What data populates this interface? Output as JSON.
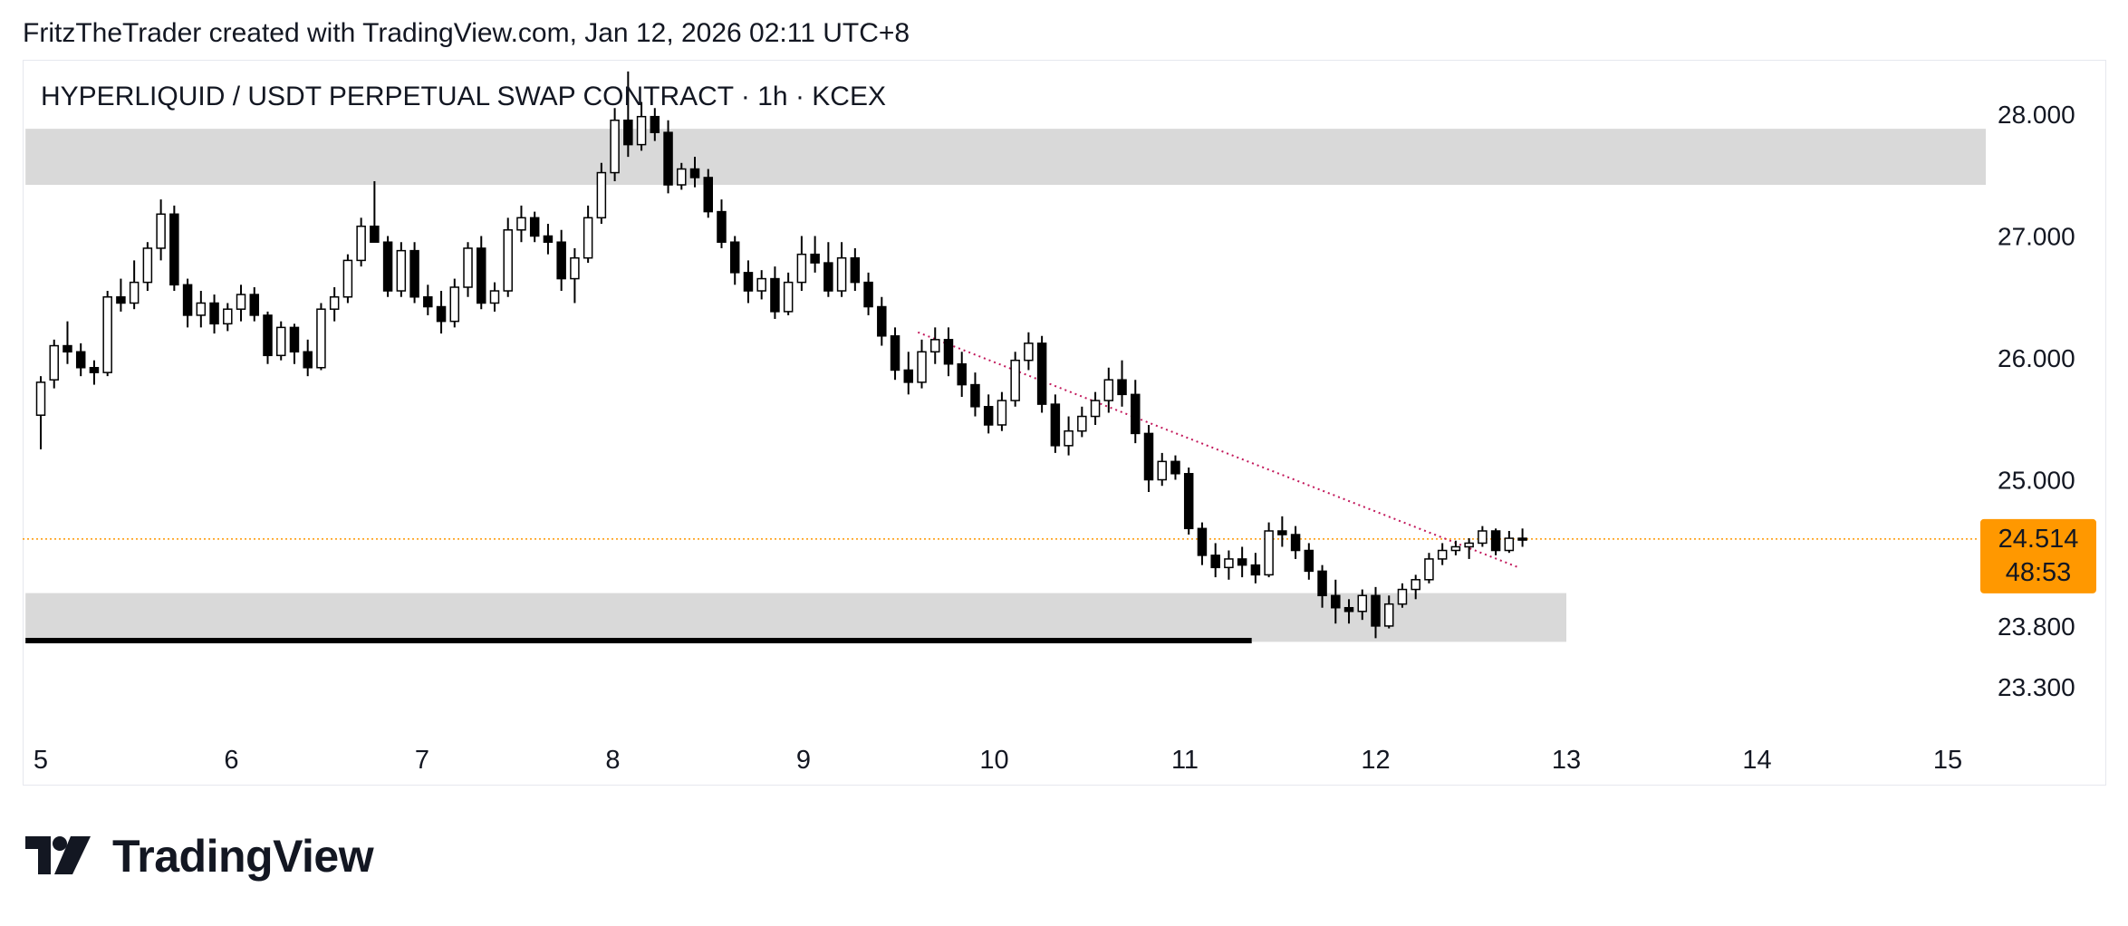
{
  "header": {
    "text": "FritzTheTrader created with TradingView.com, Jan 12, 2026 02:11 UTC+8"
  },
  "symbol": {
    "title": "HYPERLIQUID / USDT PERPETUAL SWAP CONTRACT  ·  1h  ·  KCEX"
  },
  "logo": {
    "text": "TradingView",
    "icon": "tradingview-logo-icon"
  },
  "colors": {
    "up": "#ffffff",
    "down": "#000000",
    "wick": "#000000",
    "zone": "#d9d9d9",
    "trendline": "#c2185b",
    "last_price_line": "#ff9800",
    "last_price_badge": "#ff9800"
  },
  "chart_data": {
    "type": "candlestick",
    "title": "HYPERLIQUID / USDT PERPETUAL SWAP CONTRACT",
    "interval": "1h",
    "exchange": "KCEX",
    "x_axis": {
      "ticks": [
        "5",
        "6",
        "7",
        "8",
        "9",
        "10",
        "11",
        "12",
        "13",
        "14",
        "15"
      ],
      "range_days": [
        4.92,
        15.2
      ]
    },
    "y_axis": {
      "ticks": [
        "28.000",
        "27.000",
        "26.000",
        "25.000",
        "23.800",
        "23.300"
      ],
      "range": [
        23.2,
        28.3
      ]
    },
    "last_price": {
      "value": "24.514",
      "countdown": "48:53"
    },
    "zones": [
      {
        "name": "resistance-zone",
        "from_day": 4.92,
        "to_day": 15.2,
        "low": 27.42,
        "high": 27.88
      },
      {
        "name": "support-zone",
        "from_day": 4.92,
        "to_day": 13.0,
        "low": 23.67,
        "high": 24.07
      }
    ],
    "horizontal_lines": [
      {
        "name": "support-line",
        "from_day": 4.92,
        "to_day": 11.35,
        "price": 23.68
      }
    ],
    "trendline": {
      "start": [
        9.6,
        26.21
      ],
      "end": [
        12.75,
        24.28
      ]
    },
    "ohlc": [
      [
        5.0,
        25.53,
        25.85,
        25.25,
        25.8
      ],
      [
        5.07,
        25.82,
        26.15,
        25.75,
        26.1
      ],
      [
        5.14,
        26.1,
        26.3,
        25.95,
        26.05
      ],
      [
        5.21,
        26.05,
        26.12,
        25.85,
        25.92
      ],
      [
        5.28,
        25.92,
        25.98,
        25.78,
        25.88
      ],
      [
        5.35,
        25.88,
        26.55,
        25.85,
        26.5
      ],
      [
        5.42,
        26.5,
        26.65,
        26.38,
        26.45
      ],
      [
        5.49,
        26.45,
        26.8,
        26.4,
        26.62
      ],
      [
        5.56,
        26.62,
        26.95,
        26.55,
        26.9
      ],
      [
        5.63,
        26.9,
        27.3,
        26.8,
        27.18
      ],
      [
        5.7,
        27.18,
        27.25,
        26.55,
        26.6
      ],
      [
        5.77,
        26.6,
        26.65,
        26.25,
        26.35
      ],
      [
        5.84,
        26.35,
        26.55,
        26.25,
        26.45
      ],
      [
        5.91,
        26.45,
        26.52,
        26.2,
        26.28
      ],
      [
        5.98,
        26.28,
        26.45,
        26.22,
        26.4
      ],
      [
        6.05,
        26.4,
        26.6,
        26.3,
        26.52
      ],
      [
        6.12,
        26.52,
        26.58,
        26.3,
        26.35
      ],
      [
        6.19,
        26.35,
        26.38,
        25.95,
        26.02
      ],
      [
        6.26,
        26.02,
        26.3,
        25.98,
        26.25
      ],
      [
        6.33,
        26.25,
        26.28,
        25.95,
        26.05
      ],
      [
        6.4,
        26.05,
        26.15,
        25.85,
        25.92
      ],
      [
        6.47,
        25.92,
        26.45,
        25.9,
        26.4
      ],
      [
        6.54,
        26.4,
        26.58,
        26.3,
        26.5
      ],
      [
        6.61,
        26.5,
        26.85,
        26.45,
        26.8
      ],
      [
        6.68,
        26.8,
        27.15,
        26.75,
        27.08
      ],
      [
        6.75,
        27.08,
        27.45,
        27.0,
        26.95
      ],
      [
        6.82,
        26.95,
        27.0,
        26.5,
        26.55
      ],
      [
        6.89,
        26.55,
        26.95,
        26.5,
        26.88
      ],
      [
        6.96,
        26.88,
        26.95,
        26.45,
        26.5
      ],
      [
        7.03,
        26.5,
        26.6,
        26.35,
        26.42
      ],
      [
        7.1,
        26.42,
        26.55,
        26.2,
        26.3
      ],
      [
        7.17,
        26.3,
        26.65,
        26.25,
        26.58
      ],
      [
        7.24,
        26.58,
        26.95,
        26.5,
        26.9
      ],
      [
        7.31,
        26.9,
        27.0,
        26.4,
        26.45
      ],
      [
        7.38,
        26.45,
        26.62,
        26.38,
        26.55
      ],
      [
        7.45,
        26.55,
        27.15,
        26.5,
        27.05
      ],
      [
        7.52,
        27.05,
        27.25,
        26.95,
        27.15
      ],
      [
        7.59,
        27.15,
        27.2,
        26.95,
        27.0
      ],
      [
        7.66,
        27.0,
        27.1,
        26.85,
        26.95
      ],
      [
        7.73,
        26.95,
        27.05,
        26.55,
        26.65
      ],
      [
        7.8,
        26.65,
        26.9,
        26.45,
        26.82
      ],
      [
        7.87,
        26.82,
        27.25,
        26.78,
        27.15
      ],
      [
        7.94,
        27.15,
        27.6,
        27.1,
        27.52
      ],
      [
        8.01,
        27.52,
        28.05,
        27.45,
        27.95
      ],
      [
        8.08,
        27.95,
        28.35,
        27.65,
        27.75
      ],
      [
        8.15,
        27.75,
        28.1,
        27.7,
        27.98
      ],
      [
        8.22,
        27.98,
        28.05,
        27.78,
        27.85
      ],
      [
        8.29,
        27.85,
        27.95,
        27.35,
        27.42
      ],
      [
        8.36,
        27.42,
        27.6,
        27.38,
        27.55
      ],
      [
        8.43,
        27.55,
        27.65,
        27.4,
        27.48
      ],
      [
        8.5,
        27.48,
        27.55,
        27.15,
        27.2
      ],
      [
        8.57,
        27.2,
        27.3,
        26.9,
        26.95
      ],
      [
        8.64,
        26.95,
        27.0,
        26.6,
        26.7
      ],
      [
        8.71,
        26.7,
        26.8,
        26.45,
        26.55
      ],
      [
        8.78,
        26.55,
        26.72,
        26.48,
        26.65
      ],
      [
        8.85,
        26.65,
        26.75,
        26.32,
        26.38
      ],
      [
        8.92,
        26.38,
        26.7,
        26.35,
        26.62
      ],
      [
        8.99,
        26.62,
        27.0,
        26.55,
        26.85
      ],
      [
        9.06,
        26.85,
        27.0,
        26.7,
        26.78
      ],
      [
        9.13,
        26.78,
        26.95,
        26.5,
        26.55
      ],
      [
        9.2,
        26.55,
        26.95,
        26.5,
        26.82
      ],
      [
        9.27,
        26.82,
        26.9,
        26.55,
        26.62
      ],
      [
        9.34,
        26.62,
        26.7,
        26.35,
        26.42
      ],
      [
        9.41,
        26.42,
        26.5,
        26.1,
        26.18
      ],
      [
        9.48,
        26.18,
        26.25,
        25.82,
        25.9
      ],
      [
        9.55,
        25.9,
        26.05,
        25.7,
        25.8
      ],
      [
        9.62,
        25.8,
        26.15,
        25.75,
        26.05
      ],
      [
        9.69,
        26.05,
        26.25,
        25.95,
        26.15
      ],
      [
        9.76,
        26.15,
        26.25,
        25.85,
        25.95
      ],
      [
        9.83,
        25.95,
        26.05,
        25.68,
        25.78
      ],
      [
        9.9,
        25.78,
        25.88,
        25.52,
        25.6
      ],
      [
        9.97,
        25.6,
        25.7,
        25.38,
        25.45
      ],
      [
        10.04,
        25.45,
        25.72,
        25.4,
        25.65
      ],
      [
        10.11,
        25.65,
        26.05,
        25.6,
        25.98
      ],
      [
        10.18,
        25.98,
        26.21,
        25.9,
        26.12
      ],
      [
        10.25,
        26.12,
        26.18,
        25.55,
        25.62
      ],
      [
        10.32,
        25.62,
        25.7,
        25.22,
        25.28
      ],
      [
        10.39,
        25.28,
        25.52,
        25.2,
        25.4
      ],
      [
        10.46,
        25.4,
        25.6,
        25.35,
        25.52
      ],
      [
        10.53,
        25.52,
        25.72,
        25.45,
        25.65
      ],
      [
        10.6,
        25.65,
        25.92,
        25.55,
        25.82
      ],
      [
        10.67,
        25.82,
        25.98,
        25.6,
        25.7
      ],
      [
        10.74,
        25.7,
        25.82,
        25.3,
        25.38
      ],
      [
        10.81,
        25.38,
        25.45,
        24.9,
        25.0
      ],
      [
        10.88,
        25.0,
        25.22,
        24.95,
        25.15
      ],
      [
        10.95,
        25.15,
        25.2,
        25.0,
        25.05
      ],
      [
        11.02,
        25.05,
        25.1,
        24.55,
        24.6
      ],
      [
        11.09,
        24.6,
        24.65,
        24.3,
        24.38
      ],
      [
        11.16,
        24.38,
        24.48,
        24.2,
        24.28
      ],
      [
        11.23,
        24.28,
        24.42,
        24.18,
        24.35
      ],
      [
        11.3,
        24.35,
        24.45,
        24.2,
        24.3
      ],
      [
        11.37,
        24.3,
        24.4,
        24.15,
        24.22
      ],
      [
        11.44,
        24.22,
        24.65,
        24.2,
        24.58
      ],
      [
        11.51,
        24.58,
        24.7,
        24.45,
        24.55
      ],
      [
        11.58,
        24.55,
        24.62,
        24.35,
        24.42
      ],
      [
        11.65,
        24.42,
        24.48,
        24.18,
        24.25
      ],
      [
        11.72,
        24.25,
        24.3,
        23.95,
        24.05
      ],
      [
        11.79,
        24.05,
        24.18,
        23.82,
        23.95
      ],
      [
        11.86,
        23.95,
        24.02,
        23.82,
        23.92
      ],
      [
        11.93,
        23.92,
        24.1,
        23.85,
        24.05
      ],
      [
        12.0,
        24.05,
        24.12,
        23.7,
        23.8
      ],
      [
        12.07,
        23.8,
        24.05,
        23.78,
        23.98
      ],
      [
        12.14,
        23.98,
        24.15,
        23.95,
        24.1
      ],
      [
        12.21,
        24.1,
        24.22,
        24.02,
        24.18
      ],
      [
        12.28,
        24.18,
        24.4,
        24.15,
        24.35
      ],
      [
        12.35,
        24.35,
        24.48,
        24.3,
        24.42
      ],
      [
        12.42,
        24.42,
        24.5,
        24.38,
        24.45
      ],
      [
        12.49,
        24.45,
        24.52,
        24.35,
        24.48
      ],
      [
        12.56,
        24.48,
        24.62,
        24.45,
        24.58
      ],
      [
        12.63,
        24.58,
        24.6,
        24.38,
        24.42
      ],
      [
        12.7,
        24.42,
        24.58,
        24.4,
        24.52
      ],
      [
        12.77,
        24.52,
        24.6,
        24.45,
        24.51
      ]
    ]
  }
}
